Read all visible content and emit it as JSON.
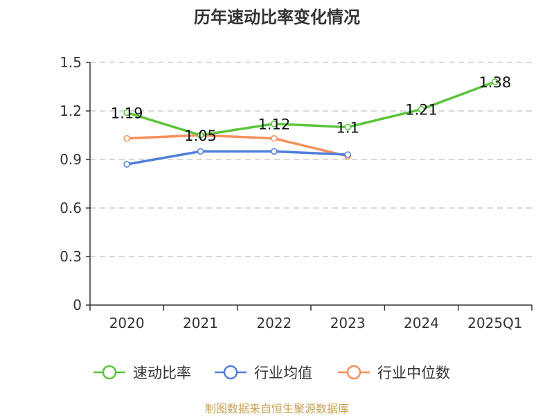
{
  "chart_data": {
    "type": "line",
    "title": "历年速动比率变化情况",
    "categories": [
      "2020",
      "2021",
      "2022",
      "2023",
      "2024",
      "2025Q1"
    ],
    "ylim": [
      0,
      1.5
    ],
    "yticks": [
      "0",
      "0.3",
      "0.6",
      "0.9",
      "1.2",
      "1.5"
    ],
    "grid": true,
    "legend_position": "bottom",
    "series": [
      {
        "name": "速动比率",
        "color": "#5cc43a",
        "values": [
          1.19,
          1.05,
          1.12,
          1.1,
          1.21,
          1.38
        ],
        "labels": [
          "1.19",
          "1.05",
          "1.12",
          "1.1",
          "1.21",
          "1.38"
        ]
      },
      {
        "name": "行业均值",
        "color": "#4f7fd9",
        "values": [
          0.87,
          0.95,
          0.95,
          0.93,
          null,
          null
        ]
      },
      {
        "name": "行业中位数",
        "color": "#f5905a",
        "values": [
          1.03,
          1.05,
          1.03,
          0.92,
          null,
          null
        ]
      }
    ]
  },
  "source": "制图数据来自恒生聚源数据库"
}
